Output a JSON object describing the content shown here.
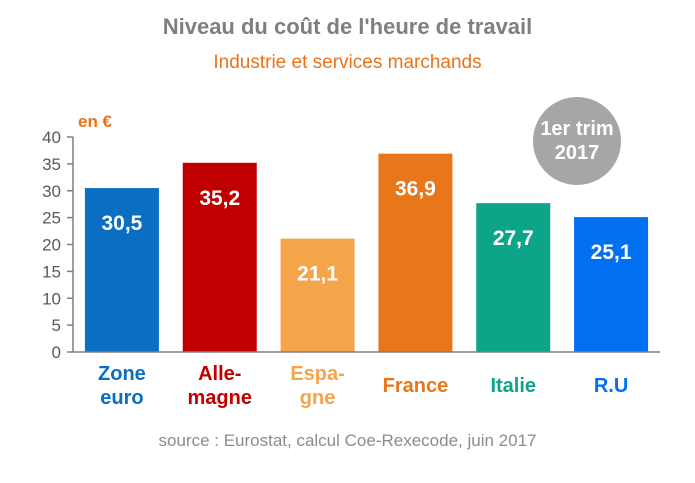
{
  "chart_data": {
    "type": "bar",
    "title": "Niveau du coût de l'heure de travail",
    "subtitle": "Industrie et services marchands",
    "unit_label": "en €",
    "badge": [
      "1er trim",
      "2017"
    ],
    "source": "source : Eurostat, calcul Coe-Rexecode, juin 2017",
    "ylim": [
      0,
      40
    ],
    "yticks": [
      "0",
      "5",
      "10",
      "15",
      "20",
      "25",
      "30",
      "35",
      "40"
    ],
    "ytick_values": [
      0,
      5,
      10,
      15,
      20,
      25,
      30,
      35,
      40
    ],
    "grid": false,
    "categories": [
      [
        "Zone",
        "euro"
      ],
      [
        "Alle-",
        "magne"
      ],
      [
        "Espa-",
        "gne"
      ],
      [
        "France"
      ],
      [
        "Italie"
      ],
      [
        "R.U"
      ]
    ],
    "values": [
      30.5,
      35.2,
      21.1,
      36.9,
      27.7,
      25.1
    ],
    "value_labels": [
      "30,5",
      "35,2",
      "21,1",
      "36,9",
      "27,7",
      "25,1"
    ],
    "colors": [
      "#0a6fc2",
      "#c00000",
      "#f4a54a",
      "#e8761a",
      "#0da58a",
      "#0070f0"
    ]
  }
}
